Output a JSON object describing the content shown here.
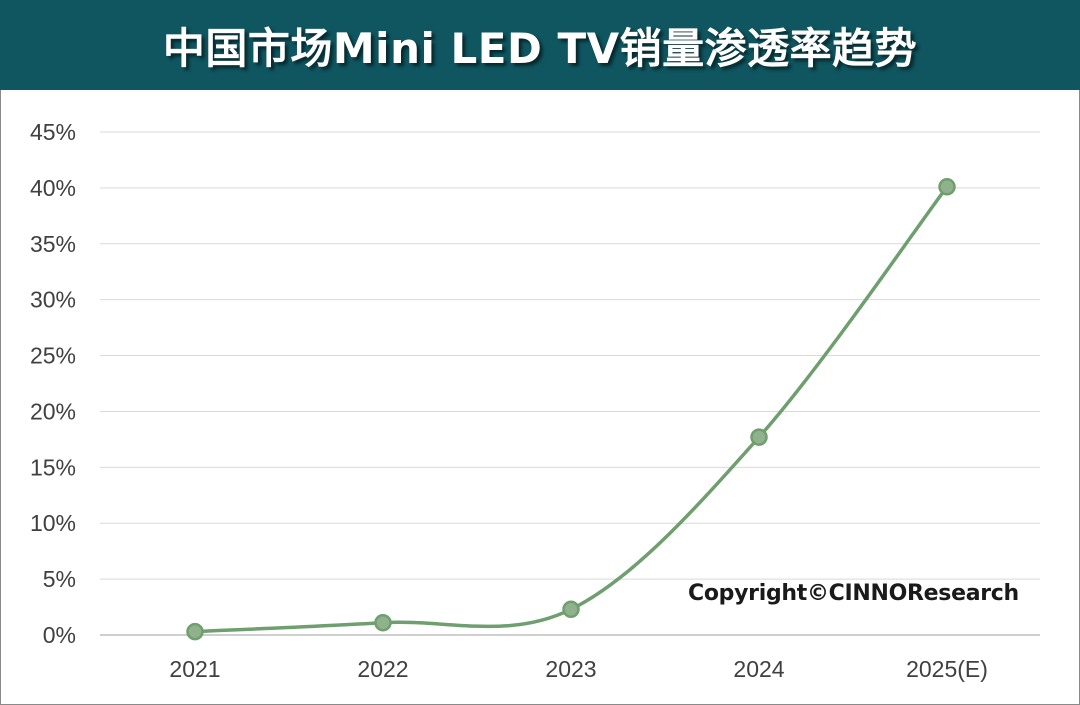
{
  "title": "中国市场Mini LED TV销量渗透率趋势",
  "copyright": "Copyright©CINNOResearch",
  "colors": {
    "header_bg": "#0f5660",
    "line": "#6f9e6f",
    "marker_fill": "#8fb28c",
    "grid": "#d9d9d9",
    "axis": "#bfbfbf"
  },
  "chart_data": {
    "type": "line",
    "categories": [
      "2021",
      "2022",
      "2023",
      "2024",
      "2025(E)"
    ],
    "series": [
      {
        "values": [
          0.3,
          1.1,
          2.3,
          17.7,
          40.1
        ]
      }
    ],
    "y_ticks": [
      "0%",
      "5%",
      "10%",
      "15%",
      "20%",
      "25%",
      "30%",
      "35%",
      "40%",
      "45%"
    ],
    "ylim": [
      0,
      45
    ],
    "y_unit": "%",
    "smooth": true,
    "grid": true,
    "legend": "none"
  }
}
